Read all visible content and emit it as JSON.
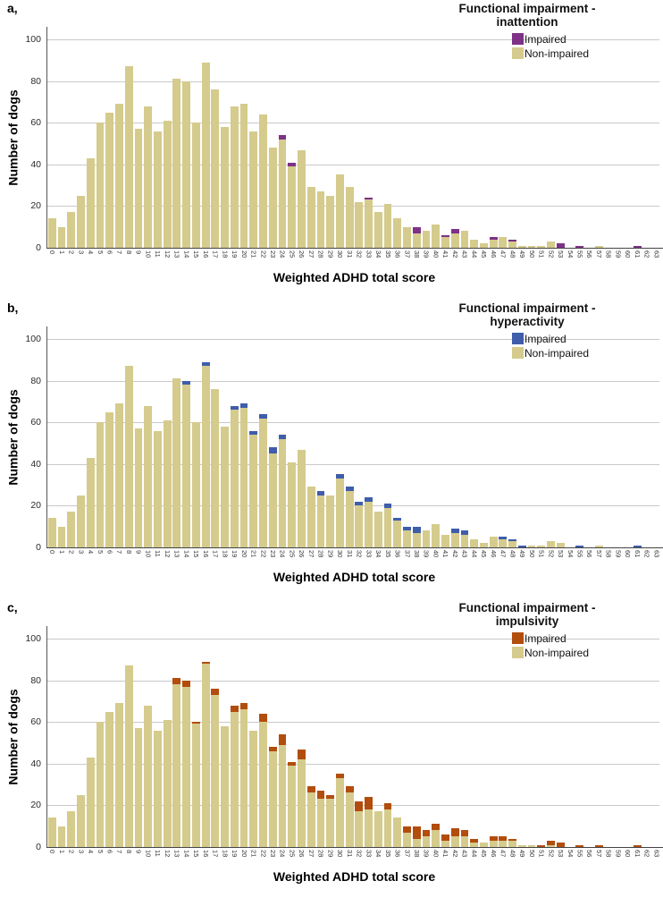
{
  "shared": {
    "ylabel": "Number of dogs",
    "xlabel": "Weighted ADHD total score",
    "yticks": [
      0,
      20,
      40,
      60,
      80,
      100
    ],
    "colors": {
      "non_impaired": "#d5cb8d",
      "inattention_impaired": "#7e3187",
      "hyperactivity_impaired": "#3f5dab",
      "impulsivity_impaired": "#b24d0d",
      "gridline": "#c9c9c9"
    }
  },
  "chart_data": [
    {
      "type": "bar",
      "stacked": true,
      "panel_letter": "a,",
      "legend_title": [
        "Functional impairment -",
        "inattention"
      ],
      "legend_items": [
        {
          "label": "Impaired",
          "color": "#7e3187"
        },
        {
          "label": "Non-impaired",
          "color": "#d5cb8d"
        }
      ],
      "xlabel": "Weighted ADHD total score",
      "ylabel": "Number of dogs",
      "ylim": [
        0,
        100
      ],
      "yticks": [
        0,
        20,
        40,
        60,
        80,
        100
      ],
      "categories": [
        "0",
        "1",
        "2",
        "3",
        "4",
        "5",
        "6",
        "7",
        "8",
        "9",
        "10",
        "11",
        "12",
        "13",
        "14",
        "15",
        "16",
        "17",
        "18",
        "19",
        "20",
        "21",
        "22",
        "23",
        "24",
        "25",
        "26",
        "27",
        "28",
        "29",
        "30",
        "31",
        "32",
        "33",
        "34",
        "35",
        "36",
        "37",
        "38",
        "39",
        "40",
        "41",
        "42",
        "43",
        "44",
        "45",
        "46",
        "47",
        "48",
        "49",
        "50",
        "51",
        "52",
        "53",
        "54",
        "55",
        "56",
        "57",
        "58",
        "59",
        "60",
        "61",
        "62",
        "63"
      ],
      "series": [
        {
          "name": "Impaired",
          "color": "#7e3187",
          "values": [
            0,
            0,
            0,
            0,
            0,
            0,
            0,
            0,
            0,
            0,
            0,
            0,
            0,
            0,
            0,
            0,
            0,
            0,
            0,
            0,
            0,
            0,
            0,
            0,
            2,
            2,
            0,
            0,
            0,
            0,
            0,
            0,
            0,
            1,
            0,
            0,
            0,
            0,
            3,
            0,
            0,
            1,
            2,
            0,
            0,
            0,
            1,
            0,
            1,
            0,
            0,
            0,
            0,
            2,
            0,
            1,
            0,
            0,
            0,
            0,
            0,
            1,
            0,
            0
          ]
        },
        {
          "name": "Non-impaired",
          "color": "#d5cb8d",
          "values": [
            14,
            10,
            17,
            25,
            43,
            60,
            65,
            69,
            87,
            57,
            68,
            56,
            61,
            81,
            80,
            60,
            89,
            76,
            58,
            68,
            69,
            56,
            64,
            48,
            52,
            39,
            47,
            29,
            27,
            25,
            35,
            29,
            22,
            23,
            17,
            21,
            14,
            10,
            7,
            8,
            11,
            5,
            7,
            8,
            4,
            2,
            4,
            5,
            3,
            1,
            1,
            1,
            3,
            0,
            0,
            0,
            0,
            1,
            0,
            0,
            0,
            0,
            0,
            0
          ]
        }
      ]
    },
    {
      "type": "bar",
      "stacked": true,
      "panel_letter": "b,",
      "legend_title": [
        "Functional impairment -",
        "hyperactivity"
      ],
      "legend_items": [
        {
          "label": "Impaired",
          "color": "#3f5dab"
        },
        {
          "label": "Non-impaired",
          "color": "#d5cb8d"
        }
      ],
      "xlabel": "Weighted ADHD total score",
      "ylabel": "Number of dogs",
      "ylim": [
        0,
        100
      ],
      "yticks": [
        0,
        20,
        40,
        60,
        80,
        100
      ],
      "categories": [
        "0",
        "1",
        "2",
        "3",
        "4",
        "5",
        "6",
        "7",
        "8",
        "9",
        "10",
        "11",
        "12",
        "13",
        "14",
        "15",
        "16",
        "17",
        "18",
        "19",
        "20",
        "21",
        "22",
        "23",
        "24",
        "25",
        "26",
        "27",
        "28",
        "29",
        "30",
        "31",
        "32",
        "33",
        "34",
        "35",
        "36",
        "37",
        "38",
        "39",
        "40",
        "41",
        "42",
        "43",
        "44",
        "45",
        "46",
        "47",
        "48",
        "49",
        "50",
        "51",
        "52",
        "53",
        "54",
        "55",
        "56",
        "57",
        "58",
        "59",
        "60",
        "61",
        "62",
        "63"
      ],
      "series": [
        {
          "name": "Impaired",
          "color": "#3f5dab",
          "values": [
            0,
            0,
            0,
            0,
            0,
            0,
            0,
            0,
            0,
            0,
            0,
            0,
            0,
            0,
            2,
            0,
            2,
            0,
            0,
            2,
            2,
            2,
            2,
            3,
            2,
            0,
            0,
            0,
            2,
            0,
            2,
            2,
            2,
            2,
            0,
            2,
            1,
            2,
            3,
            0,
            0,
            0,
            2,
            2,
            0,
            0,
            0,
            1,
            1,
            1,
            0,
            0,
            0,
            0,
            0,
            1,
            0,
            0,
            0,
            0,
            0,
            1,
            0,
            0
          ]
        },
        {
          "name": "Non-impaired",
          "color": "#d5cb8d",
          "values": [
            14,
            10,
            17,
            25,
            43,
            60,
            65,
            69,
            87,
            57,
            68,
            56,
            61,
            81,
            78,
            60,
            87,
            76,
            58,
            66,
            67,
            54,
            62,
            45,
            52,
            41,
            47,
            29,
            25,
            25,
            33,
            27,
            20,
            22,
            17,
            19,
            13,
            8,
            7,
            8,
            11,
            6,
            7,
            6,
            4,
            2,
            5,
            4,
            3,
            0,
            1,
            1,
            3,
            2,
            0,
            0,
            0,
            1,
            0,
            0,
            0,
            0,
            0,
            0
          ]
        }
      ]
    },
    {
      "type": "bar",
      "stacked": true,
      "panel_letter": "c,",
      "legend_title": [
        "Functional impairment -",
        "impulsivity"
      ],
      "legend_items": [
        {
          "label": "Impaired",
          "color": "#b24d0d"
        },
        {
          "label": "Non-impaired",
          "color": "#d5cb8d"
        }
      ],
      "xlabel": "Weighted ADHD total score",
      "ylabel": "Number of dogs",
      "ylim": [
        0,
        100
      ],
      "yticks": [
        0,
        20,
        40,
        60,
        80,
        100
      ],
      "categories": [
        "0",
        "1",
        "2",
        "3",
        "4",
        "5",
        "6",
        "7",
        "8",
        "9",
        "10",
        "11",
        "12",
        "13",
        "14",
        "15",
        "16",
        "17",
        "18",
        "19",
        "20",
        "21",
        "22",
        "23",
        "24",
        "25",
        "26",
        "27",
        "28",
        "29",
        "30",
        "31",
        "32",
        "33",
        "34",
        "35",
        "36",
        "37",
        "38",
        "39",
        "40",
        "41",
        "42",
        "43",
        "44",
        "45",
        "46",
        "47",
        "48",
        "49",
        "50",
        "51",
        "52",
        "53",
        "54",
        "55",
        "56",
        "57",
        "58",
        "59",
        "60",
        "61",
        "62",
        "63"
      ],
      "series": [
        {
          "name": "Impaired",
          "color": "#b24d0d",
          "values": [
            0,
            0,
            0,
            0,
            0,
            0,
            0,
            0,
            0,
            0,
            0,
            0,
            0,
            3,
            3,
            1,
            1,
            3,
            0,
            3,
            3,
            0,
            4,
            2,
            5,
            2,
            5,
            3,
            4,
            2,
            2,
            3,
            5,
            6,
            0,
            3,
            0,
            3,
            6,
            3,
            3,
            3,
            4,
            3,
            2,
            0,
            2,
            2,
            1,
            0,
            0,
            1,
            2,
            2,
            0,
            1,
            0,
            1,
            0,
            0,
            0,
            1,
            0,
            0
          ]
        },
        {
          "name": "Non-impaired",
          "color": "#d5cb8d",
          "values": [
            14,
            10,
            17,
            25,
            43,
            60,
            65,
            69,
            87,
            57,
            68,
            56,
            61,
            78,
            77,
            59,
            88,
            73,
            58,
            65,
            66,
            56,
            60,
            46,
            49,
            39,
            42,
            26,
            23,
            23,
            33,
            26,
            17,
            18,
            17,
            18,
            14,
            7,
            4,
            5,
            8,
            3,
            5,
            5,
            2,
            2,
            3,
            3,
            3,
            1,
            1,
            0,
            1,
            0,
            0,
            0,
            0,
            0,
            0,
            0,
            0,
            0,
            0,
            0
          ]
        }
      ]
    }
  ]
}
